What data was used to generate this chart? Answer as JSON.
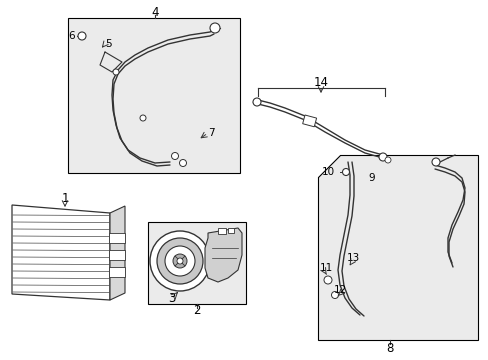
{
  "bg_color": "#ffffff",
  "border_color": "#000000",
  "line_color": "#333333",
  "text_color": "#000000",
  "box_fill": "#ebebeb",
  "fig_width": 4.89,
  "fig_height": 3.6,
  "dpi": 100
}
